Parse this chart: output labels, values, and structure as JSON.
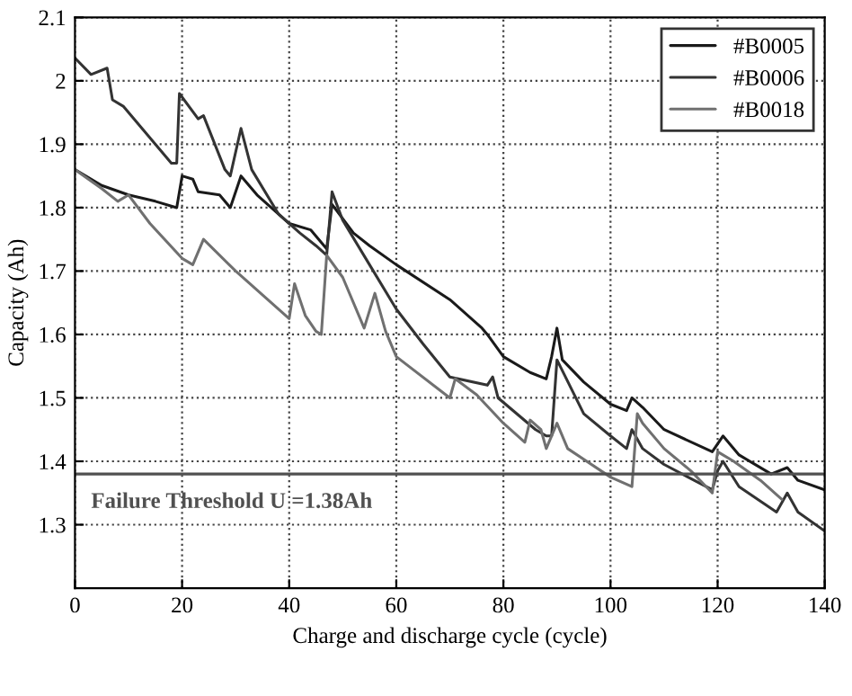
{
  "chart_data": {
    "type": "line",
    "xlabel": "Charge and discharge cycle (cycle)",
    "ylabel": "Capacity (Ah)",
    "xlim": [
      0,
      140
    ],
    "ylim": [
      1.2,
      2.1
    ],
    "xticks": [
      0,
      20,
      40,
      60,
      80,
      100,
      120,
      140
    ],
    "yticks": [
      1.3,
      1.4,
      1.5,
      1.6,
      1.7,
      1.8,
      1.9,
      2,
      2.1
    ],
    "grid": true,
    "legend": "top right",
    "line_style": "solid",
    "ref_lines": [
      {
        "axis": "y",
        "value": 1.38,
        "label": "Failure Threshold U =1.38Ah",
        "color": "#505050"
      }
    ],
    "series": [
      {
        "name": "#B0005",
        "color": "#1a1a1a",
        "x": [
          0,
          5,
          10,
          15,
          19,
          20,
          22,
          23,
          27,
          29,
          31,
          34,
          40,
          44,
          47,
          48,
          52,
          55,
          60,
          70,
          76,
          77,
          80,
          85,
          88,
          89,
          90,
          91,
          95,
          100,
          103,
          104,
          106,
          110,
          119,
          121,
          124,
          130,
          133,
          135,
          140
        ],
        "values": [
          1.86,
          1.835,
          1.82,
          1.81,
          1.8,
          1.85,
          1.845,
          1.825,
          1.82,
          1.8,
          1.85,
          1.82,
          1.775,
          1.765,
          1.735,
          1.805,
          1.76,
          1.74,
          1.71,
          1.655,
          1.61,
          1.6,
          1.565,
          1.54,
          1.53,
          1.565,
          1.61,
          1.56,
          1.525,
          1.49,
          1.48,
          1.5,
          1.485,
          1.45,
          1.415,
          1.44,
          1.41,
          1.38,
          1.39,
          1.37,
          1.355
        ]
      },
      {
        "name": "#B0006",
        "color": "#333333",
        "x": [
          0,
          3,
          6,
          7,
          9,
          18,
          19,
          19.5,
          23,
          24,
          28,
          29,
          31,
          33,
          38,
          42,
          45,
          47,
          48,
          50,
          55,
          60,
          65,
          70,
          77,
          78,
          79,
          86,
          88,
          89,
          90,
          95,
          100,
          103,
          104,
          106,
          110,
          119,
          120,
          121,
          124,
          131,
          133,
          135,
          140
        ],
        "values": [
          2.036,
          2.01,
          2.02,
          1.97,
          1.96,
          1.87,
          1.87,
          1.98,
          1.94,
          1.945,
          1.86,
          1.85,
          1.925,
          1.86,
          1.79,
          1.76,
          1.74,
          1.725,
          1.825,
          1.78,
          1.71,
          1.64,
          1.585,
          1.533,
          1.52,
          1.533,
          1.5,
          1.45,
          1.44,
          1.44,
          1.56,
          1.475,
          1.44,
          1.42,
          1.45,
          1.42,
          1.395,
          1.355,
          1.385,
          1.4,
          1.36,
          1.32,
          1.35,
          1.32,
          1.29
        ]
      },
      {
        "name": "#B0018",
        "color": "#707070",
        "x": [
          0,
          5,
          8,
          10,
          14,
          20,
          22,
          24,
          30,
          40,
          41,
          43,
          45,
          46,
          47,
          50,
          54,
          56,
          58,
          60,
          70,
          71,
          75,
          80,
          84,
          85,
          87,
          88,
          90,
          92,
          100,
          104,
          105,
          106,
          110,
          115,
          119,
          120,
          123,
          128,
          132
        ],
        "values": [
          1.86,
          1.83,
          1.81,
          1.82,
          1.775,
          1.72,
          1.71,
          1.75,
          1.7,
          1.625,
          1.68,
          1.63,
          1.605,
          1.6,
          1.725,
          1.69,
          1.61,
          1.665,
          1.605,
          1.565,
          1.5,
          1.53,
          1.505,
          1.46,
          1.43,
          1.465,
          1.45,
          1.42,
          1.46,
          1.42,
          1.375,
          1.36,
          1.475,
          1.46,
          1.42,
          1.385,
          1.35,
          1.415,
          1.4,
          1.37,
          1.34
        ]
      }
    ]
  }
}
